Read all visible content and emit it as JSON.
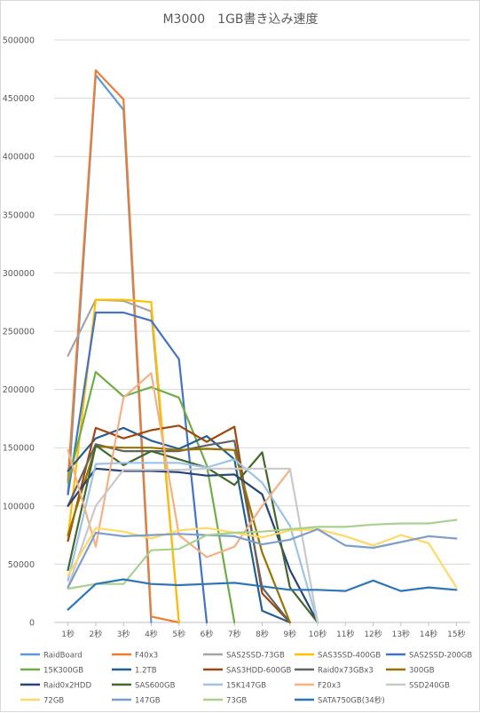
{
  "chart_data": {
    "type": "line",
    "title": "M3000　1GB書き込み速度",
    "xlabel": "",
    "ylabel": "",
    "categories": [
      "1秒",
      "2秒",
      "3秒",
      "4秒",
      "5秒",
      "6秒",
      "7秒",
      "8秒",
      "9秒",
      "10秒",
      "11秒",
      "12秒",
      "13秒",
      "14秒",
      "15秒"
    ],
    "ylim": [
      0,
      500000
    ],
    "yticks": [
      0,
      50000,
      100000,
      150000,
      200000,
      250000,
      300000,
      350000,
      400000,
      450000,
      500000
    ],
    "grid": true,
    "legend_position": "bottom",
    "series": [
      {
        "name": "RaidBoard",
        "color": "#5b9bd5",
        "values": [
          110000,
          470000,
          440000,
          0,
          null,
          null,
          null,
          null,
          null,
          null,
          null,
          null,
          null,
          null,
          null
        ]
      },
      {
        "name": "F40x3",
        "color": "#ed7d31",
        "values": [
          122000,
          474000,
          449000,
          5000,
          0,
          null,
          null,
          null,
          null,
          null,
          null,
          null,
          null,
          null,
          null
        ]
      },
      {
        "name": "SAS2SSD-73GB",
        "color": "#a5a5a5",
        "values": [
          229000,
          277000,
          276000,
          267000,
          0,
          null,
          null,
          null,
          null,
          null,
          null,
          null,
          null,
          null,
          null
        ]
      },
      {
        "name": "SAS3SSD-400GB",
        "color": "#ffc000",
        "values": [
          73000,
          277000,
          277000,
          275000,
          0,
          null,
          null,
          null,
          null,
          null,
          null,
          null,
          null,
          null,
          null
        ]
      },
      {
        "name": "SAS2SSD-200GB",
        "color": "#4472c4",
        "values": [
          110000,
          266000,
          266000,
          259000,
          226000,
          0,
          null,
          null,
          null,
          null,
          null,
          null,
          null,
          null,
          null
        ]
      },
      {
        "name": "15K300GB",
        "color": "#70ad47",
        "values": [
          120000,
          215000,
          194000,
          202000,
          193000,
          135000,
          0,
          null,
          null,
          null,
          null,
          null,
          null,
          null,
          null
        ]
      },
      {
        "name": "1.2TB",
        "color": "#255e91",
        "values": [
          130000,
          158000,
          167000,
          156000,
          149000,
          160000,
          140000,
          10000,
          0,
          null,
          null,
          null,
          null,
          null,
          null
        ]
      },
      {
        "name": "SAS3HDD-600GB",
        "color": "#9e480e",
        "values": [
          70000,
          167000,
          158000,
          165000,
          169000,
          155000,
          168000,
          25000,
          0,
          null,
          null,
          null,
          null,
          null,
          null
        ]
      },
      {
        "name": "Raid0x73GBx3",
        "color": "#636363",
        "values": [
          100000,
          153000,
          147000,
          147000,
          147000,
          152000,
          156000,
          30000,
          0,
          null,
          null,
          null,
          null,
          null,
          null
        ]
      },
      {
        "name": "300GB",
        "color": "#997300",
        "values": [
          75000,
          151000,
          150000,
          150000,
          148000,
          149000,
          148000,
          60000,
          0,
          null,
          null,
          null,
          null,
          null,
          null
        ]
      },
      {
        "name": "Raid0x2HDD",
        "color": "#264478",
        "values": [
          100000,
          132000,
          130000,
          130000,
          129000,
          126000,
          127000,
          110000,
          45000,
          0,
          null,
          null,
          null,
          null,
          null
        ]
      },
      {
        "name": "SAS600GB",
        "color": "#43682b",
        "values": [
          45000,
          152000,
          135000,
          147000,
          140000,
          133000,
          118000,
          146000,
          30000,
          0,
          null,
          null,
          null,
          null,
          null
        ]
      },
      {
        "name": "15K147GB",
        "color": "#9dc3e6",
        "values": [
          36000,
          136000,
          137000,
          137000,
          137000,
          133000,
          140000,
          120000,
          83000,
          0,
          null,
          null,
          null,
          null,
          null
        ]
      },
      {
        "name": "F20x3",
        "color": "#f4b183",
        "values": [
          148000,
          65000,
          193000,
          214000,
          75000,
          56000,
          65000,
          100000,
          131000,
          null,
          null,
          null,
          null,
          null,
          null
        ]
      },
      {
        "name": "SSD240GB",
        "color": "#c9c9c9",
        "values": [
          30000,
          100000,
          131000,
          131000,
          131000,
          132000,
          132000,
          132000,
          132000,
          0,
          null,
          null,
          null,
          null,
          null
        ]
      },
      {
        "name": "72GB",
        "color": "#ffd966",
        "values": [
          40000,
          81000,
          78000,
          72000,
          79000,
          81000,
          77000,
          73000,
          79000,
          80000,
          74000,
          66000,
          75000,
          68000,
          30000
        ]
      },
      {
        "name": "147GB",
        "color": "#7f9ec9",
        "values": [
          30000,
          77000,
          74000,
          75000,
          76000,
          75000,
          74000,
          67000,
          71000,
          80000,
          66000,
          64000,
          69000,
          74000,
          72000
        ]
      },
      {
        "name": "73GB",
        "color": "#a9d18e",
        "values": [
          29000,
          33000,
          33000,
          62000,
          63000,
          75000,
          77000,
          78000,
          80000,
          82000,
          82000,
          84000,
          85000,
          85000,
          88000
        ]
      },
      {
        "name": "SATA750GB(34秒)",
        "color": "#2e75b6",
        "values": [
          11000,
          33000,
          37000,
          33000,
          32000,
          33000,
          34000,
          31000,
          28000,
          28000,
          27000,
          36000,
          27000,
          30000,
          28000
        ]
      }
    ]
  }
}
